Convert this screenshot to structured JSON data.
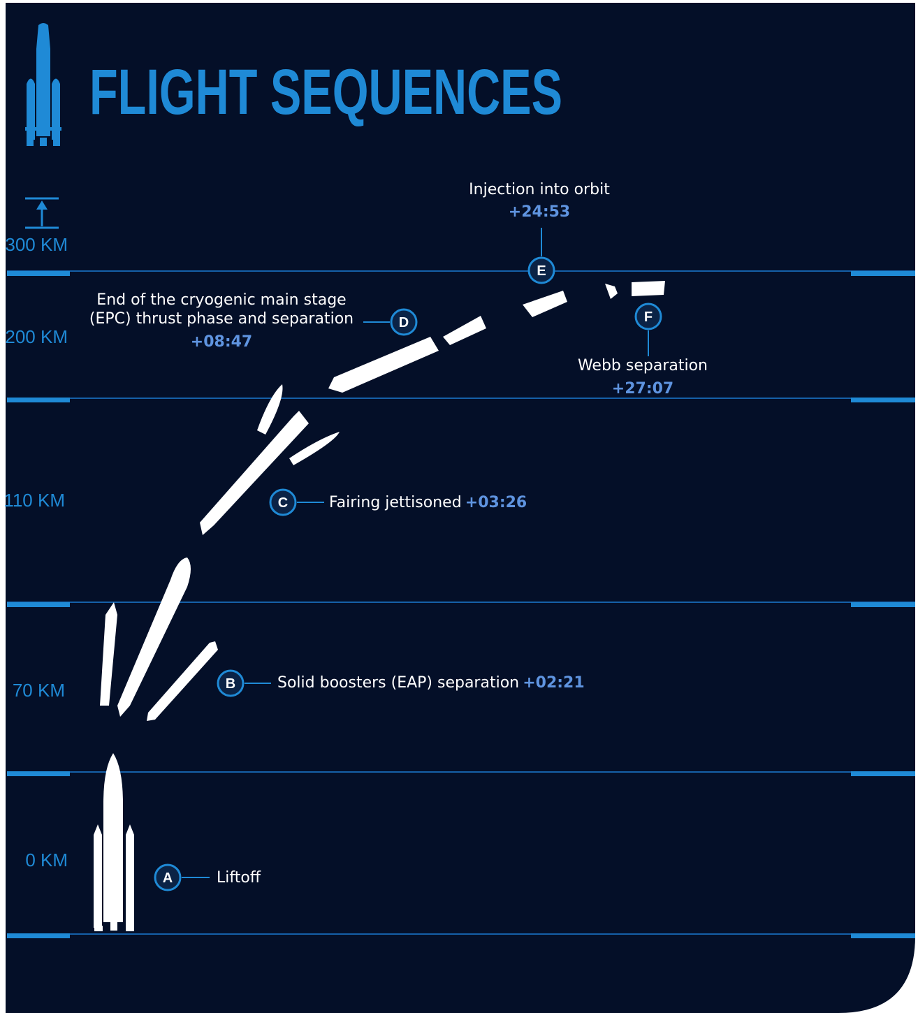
{
  "header": {
    "title": "FLIGHT SEQUENCES"
  },
  "altitudes": [
    "300 KM",
    "200 KM",
    "110 KM",
    "70 KM",
    "0 KM"
  ],
  "events": [
    {
      "marker": "A",
      "label": "Liftoff"
    },
    {
      "marker": "B",
      "label": "Solid boosters (EAP) separation",
      "time": "+02:21"
    },
    {
      "marker": "C",
      "label": "Fairing jettisoned",
      "time": "+03:26"
    },
    {
      "marker": "D",
      "label": [
        "End of the cryogenic main stage",
        "(EPC) thrust phase and separation"
      ],
      "time": "+08:47"
    },
    {
      "marker": "E",
      "label": "Injection into orbit",
      "time": "+24:53"
    },
    {
      "marker": "F",
      "label": "Webb separation",
      "time": "+27:07"
    }
  ]
}
